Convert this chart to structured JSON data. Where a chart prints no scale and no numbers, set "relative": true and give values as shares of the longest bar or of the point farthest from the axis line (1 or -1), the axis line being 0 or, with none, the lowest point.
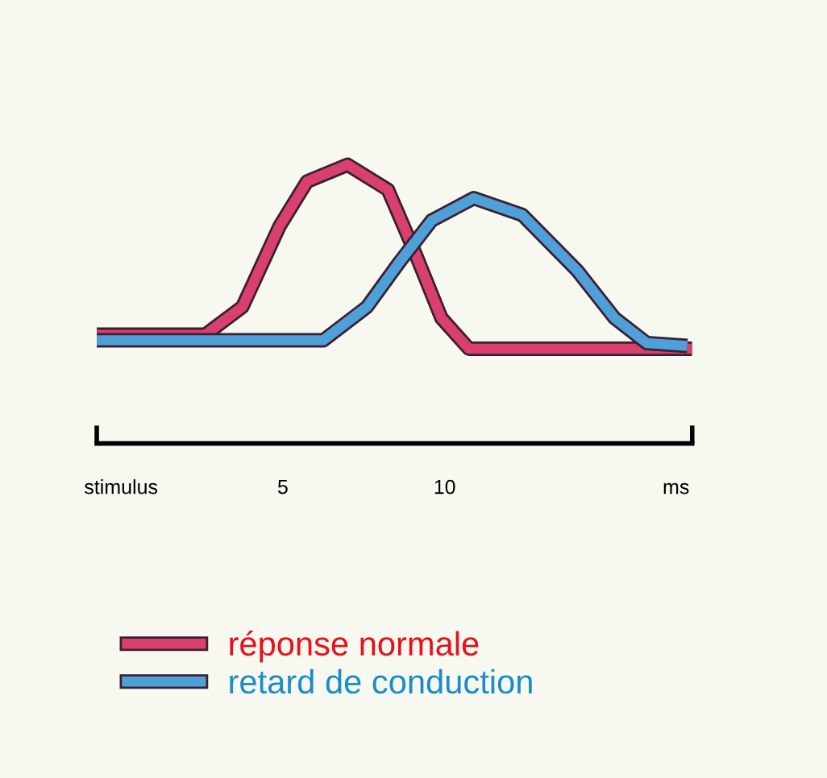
{
  "chart_data": {
    "type": "line",
    "relative": true,
    "xlim": [
      -0.75,
      17.65
    ],
    "xticks": [
      {
        "value": -0.75,
        "label": null
      },
      {
        "value": 0,
        "label": "stimulus"
      },
      5,
      10,
      {
        "value": 17.15,
        "label": "ms"
      },
      {
        "value": 17.65,
        "label": null
      }
    ],
    "legend": "bottom left",
    "grid": false,
    "marker": "none",
    "line_style": "solid",
    "series": [
      {
        "name": "réponse normale",
        "color": "#d9406f",
        "x": [
          -0.75,
          2.6,
          3.75,
          4.9,
          5.75,
          7.0,
          8.25,
          9.1,
          9.9,
          10.75,
          17.65
        ],
        "values": [
          0.39,
          0.39,
          0.49,
          0.78,
          0.94,
          1.0,
          0.91,
          0.68,
          0.45,
          0.34,
          0.34
        ]
      },
      {
        "name": "retard de conduction",
        "color": "#4f9fd8",
        "x": [
          -0.75,
          6.25,
          7.6,
          8.6,
          9.6,
          10.9,
          12.4,
          14.1,
          15.25,
          16.25,
          17.5
        ],
        "values": [
          0.37,
          0.37,
          0.49,
          0.65,
          0.8,
          0.88,
          0.82,
          0.62,
          0.45,
          0.36,
          0.35
        ]
      }
    ]
  }
}
